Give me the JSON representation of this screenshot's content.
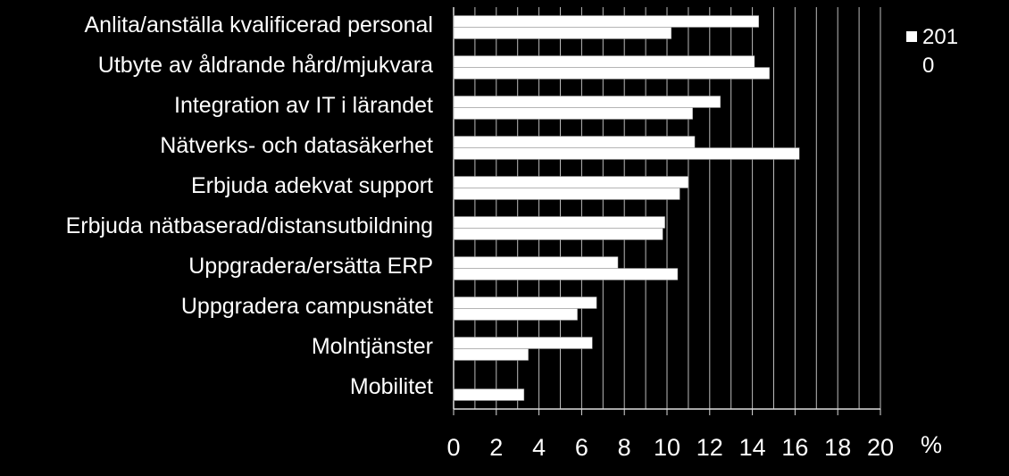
{
  "chart_data": {
    "type": "bar",
    "orientation": "horizontal",
    "categories": [
      "Anlita/anställa kvalificerad personal",
      "Utbyte av åldrande hård/mjukvara",
      "Integration av IT i lärandet",
      "Nätverks- och datasäkerhet",
      "Erbjuda adekvat support",
      "Erbjuda nätbaserad/distansutbildning",
      "Uppgradera/ersätta ERP",
      "Uppgradera campusnätet",
      "Molntjänster",
      "Mobilitet"
    ],
    "series": [
      {
        "name": "2010",
        "color": "#ffffff",
        "values": [
          14.3,
          14.1,
          12.5,
          11.3,
          11.0,
          9.9,
          7.7,
          6.7,
          6.5,
          null
        ]
      },
      {
        "color": "#ffffff",
        "values": [
          10.2,
          14.8,
          11.2,
          16.2,
          10.6,
          9.8,
          10.5,
          5.8,
          3.5,
          3.3
        ]
      }
    ],
    "xlim": [
      0,
      20
    ],
    "xticks": [
      0,
      2,
      4,
      6,
      8,
      10,
      12,
      14,
      16,
      18,
      20
    ],
    "xminor": [
      1,
      3,
      5,
      7,
      9,
      11,
      13,
      15,
      17,
      19
    ],
    "xlabel": "%",
    "grid": true,
    "legend": "top-right"
  }
}
